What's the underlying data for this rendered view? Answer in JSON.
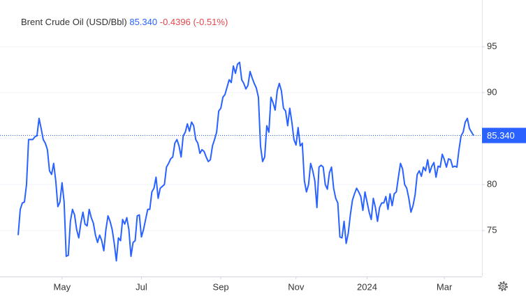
{
  "chart_data": {
    "type": "line",
    "title": "Brent Crude Oil (USD/Bbl)",
    "price": {
      "value": 85.34,
      "label": "85.340"
    },
    "change": -0.4396,
    "change_percent": {
      "value": -0.51,
      "label": "(-0.51%)"
    },
    "color": "#2962ff",
    "change_color": "#e0474c",
    "grid": true,
    "ylim": [
      70,
      100
    ],
    "yticks": [
      75,
      80,
      85,
      90,
      95
    ],
    "categories": [
      null,
      null,
      null,
      null,
      null,
      null,
      null,
      null,
      null,
      null,
      null,
      null,
      null,
      null,
      null,
      null,
      null,
      null,
      null,
      null,
      null,
      "May",
      null,
      null,
      null,
      null,
      null,
      null,
      null,
      null,
      null,
      null,
      null,
      null,
      null,
      null,
      null,
      null,
      null,
      null,
      null,
      null,
      null,
      null,
      null,
      null,
      null,
      null,
      null,
      null,
      null,
      null,
      null,
      null,
      null,
      null,
      null,
      null,
      null,
      "Jul",
      null,
      null,
      null,
      null,
      null,
      null,
      null,
      null,
      null,
      null,
      null,
      null,
      null,
      null,
      null,
      null,
      null,
      null,
      null,
      null,
      null,
      null,
      null,
      null,
      null,
      null,
      null,
      null,
      null,
      null,
      null,
      null,
      null,
      null,
      null,
      null,
      null,
      "Sep",
      null,
      null,
      null,
      null,
      null,
      null,
      null,
      null,
      null,
      null,
      null,
      null,
      null,
      null,
      null,
      null,
      null,
      null,
      null,
      null,
      null,
      null,
      null,
      null,
      null,
      null,
      null,
      null,
      null,
      null,
      null,
      null,
      null,
      null,
      null,
      "Nov",
      null,
      null,
      null,
      null,
      null,
      null,
      null,
      null,
      null,
      null,
      null,
      null,
      null,
      null,
      null,
      null,
      null,
      null,
      null,
      null,
      null,
      null,
      null,
      null,
      null,
      null,
      null,
      null,
      null,
      null,
      null,
      null,
      null,
      "2024",
      null,
      null,
      null,
      null,
      null,
      null,
      null,
      null,
      null,
      null,
      null,
      null,
      null,
      null,
      null,
      null,
      null,
      null,
      null,
      null,
      null,
      null,
      null,
      null,
      null,
      null,
      null,
      null,
      null,
      null,
      null,
      null,
      null,
      null,
      null,
      null,
      "Mar",
      null,
      null,
      null,
      null,
      null,
      null,
      null,
      null,
      null,
      null,
      null,
      null,
      null,
      null
    ],
    "values": [
      74.5,
      77.3,
      78.0,
      78.1,
      80.0,
      84.9,
      84.9,
      84.9,
      85.2,
      85.3,
      87.2,
      86.1,
      84.9,
      84.5,
      83.8,
      81.5,
      81.1,
      82.3,
      80.4,
      77.6,
      78.1,
      80.2,
      78.1,
      72.2,
      72.3,
      76.0,
      77.3,
      76.7,
      75.1,
      74.2,
      75.8,
      77.0,
      75.7,
      75.5,
      77.3,
      76.4,
      75.8,
      74.5,
      73.7,
      74.5,
      73.9,
      72.8,
      75.1,
      76.6,
      76.0,
      75.1,
      73.6,
      71.7,
      74.2,
      73.9,
      76.2,
      75.7,
      76.4,
      75.1,
      72.2,
      73.7,
      73.9,
      76.6,
      76.7,
      74.3,
      75.1,
      76.2,
      77.3,
      77.3,
      79.2,
      79.6,
      80.8,
      78.5,
      79.6,
      79.8,
      80.0,
      81.9,
      82.3,
      82.8,
      83.0,
      84.5,
      84.9,
      84.2,
      83.0,
      85.3,
      85.7,
      86.6,
      85.8,
      86.8,
      86.4,
      84.9,
      84.5,
      83.4,
      83.8,
      83.6,
      83.0,
      82.5,
      82.7,
      84.2,
      84.9,
      85.7,
      88.0,
      88.3,
      89.5,
      89.8,
      90.6,
      91.4,
      91.1,
      92.9,
      92.1,
      93.1,
      93.3,
      91.4,
      91.0,
      90.4,
      90.8,
      92.3,
      91.6,
      91.0,
      90.5,
      89.5,
      84.2,
      82.5,
      83.0,
      86.4,
      85.7,
      89.5,
      88.9,
      88.1,
      90.2,
      91.0,
      90.2,
      88.3,
      88.0,
      86.4,
      88.3,
      86.8,
      84.9,
      84.3,
      86.2,
      84.2,
      84.5,
      80.4,
      79.2,
      80.0,
      82.3,
      81.5,
      80.4,
      77.5,
      81.9,
      82.1,
      81.9,
      80.0,
      79.5,
      81.3,
      81.9,
      79.6,
      78.5,
      78.0,
      74.3,
      74.2,
      76.0,
      73.6,
      74.7,
      76.7,
      78.3,
      79.0,
      79.6,
      79.2,
      78.7,
      77.2,
      79.2,
      78.1,
      77.0,
      76.2,
      78.5,
      77.5,
      76.0,
      77.5,
      78.0,
      78.0,
      78.7,
      77.3,
      79.0,
      77.7,
      79.0,
      79.2,
      80.8,
      82.3,
      81.7,
      80.0,
      79.6,
      78.5,
      77.0,
      77.7,
      78.9,
      81.1,
      81.5,
      80.9,
      81.9,
      81.5,
      82.7,
      81.3,
      82.0,
      82.4,
      80.8,
      82.0,
      81.9,
      83.3,
      82.7,
      81.9,
      82.8,
      82.7,
      81.9,
      82.0,
      81.9,
      83.8,
      85.3,
      85.7,
      86.8,
      87.2,
      86.1,
      85.7,
      85.34
    ]
  }
}
